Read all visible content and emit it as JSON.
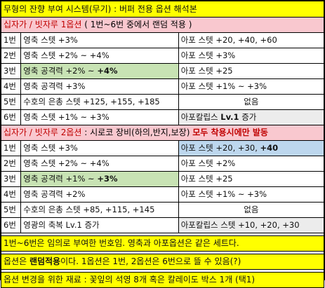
{
  "title": "무형의 잔향 부여 시스템(무기) : 버퍼 전용 옵션 해석본",
  "section1": {
    "header_a": "십자가 / 빗자루 1옵션",
    "header_b": " ( 1번~6번 중에서 랜덤 적용 )",
    "rows": [
      {
        "num": "1번",
        "left": "영축 스텟 +3%",
        "right": "아포 스텟 +20, +40, +60"
      },
      {
        "num": "2번",
        "left": "영축 스텟 +2% ~ +4%",
        "right": "아포 스텟 +3%"
      },
      {
        "num": "3번",
        "left_a": "영축 공격력",
        "left_b": " +2% ~ ",
        "left_c": "+4%",
        "right": "아포 스텟 +25"
      },
      {
        "num": "4번",
        "left": "영축 공격력 +3%",
        "right": "아포 스텟 +1% ~ +3%"
      },
      {
        "num": "5번",
        "left": "수호의 은총 스텟 +125, +155, +185",
        "right": "없음"
      },
      {
        "num": "6번",
        "left": "영축 스텟 +1% ~ +3%",
        "right_a": "아포칼립스 ",
        "right_b": "Lv.1",
        "right_c": " 증가"
      }
    ]
  },
  "section2": {
    "header_a": "십자가 / 빗자루 2옵션",
    "header_b": " : 시로코 장비(하의,반지,보장) ",
    "header_c": "모두 착용시에만 발동",
    "rows": [
      {
        "num": "1번",
        "left": "영축 스텟 +3%",
        "right_a": "아포 스텟 +20, +30, ",
        "right_b": "+40"
      },
      {
        "num": "2번",
        "left": "영축 스텟 +2% ~ +4%",
        "right": "아포 스텟 +2%"
      },
      {
        "num": "3번",
        "left_a": "영축 공격력",
        "left_b": " +1% ~ ",
        "left_c": "+3%",
        "right": "아포 스텟 +25"
      },
      {
        "num": "4번",
        "left": "영축 공격력 +2%",
        "right": "아포 스텟 +1% ~ +3%"
      },
      {
        "num": "5번",
        "left": "수호의 은총 스텟 +85, +115, +145",
        "right": "없음"
      },
      {
        "num": "6번",
        "left": "영광의 축복 Lv.1 증가",
        "right": "아포칼립스 스텟 +10, +20, +30"
      }
    ]
  },
  "notes": {
    "n1": "1번~6번은 임의로 부여한 번호임. 영축과 아포옵션은 같은 세트다.",
    "n2_a": "옵션은 ",
    "n2_b": "랜덤적용",
    "n2_c": "이다. 1옵션은 1번, 2옵션은 6번으로 뜰 수 있음(?)",
    "n3": "옵션 변경을 위한 재료 : 꽃잎의 석영 8개 혹은 칼레이도 박스 1개 (택1)"
  },
  "colors": {
    "title_bg": "#ffff00",
    "section_bg": "#f9c8cf",
    "section_text": "#c00000",
    "highlight_green": "#c8e3b4",
    "highlight_blue": "#bdd7ee",
    "highlight_grey": "#ececec"
  }
}
